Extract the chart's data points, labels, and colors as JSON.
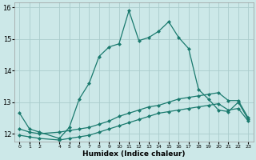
{
  "xlabel": "Humidex (Indice chaleur)",
  "background_color": "#cce8e8",
  "line_color": "#1a7a6e",
  "grid_color": "#aacccc",
  "xlim": [
    -0.5,
    23.5
  ],
  "ylim": [
    11.75,
    16.15
  ],
  "yticks": [
    12,
    13,
    14,
    15,
    16
  ],
  "xticks": [
    0,
    1,
    2,
    4,
    5,
    6,
    7,
    8,
    9,
    10,
    11,
    12,
    13,
    14,
    15,
    16,
    17,
    18,
    19,
    20,
    21,
    22,
    23
  ],
  "line1_x": [
    0,
    1,
    2,
    4,
    5,
    6,
    7,
    8,
    9,
    10,
    11,
    12,
    13,
    14,
    15,
    16,
    17,
    18,
    19,
    20,
    21,
    22,
    23
  ],
  "line1_y": [
    12.65,
    12.15,
    12.05,
    11.85,
    12.2,
    13.1,
    13.6,
    14.45,
    14.75,
    14.85,
    15.9,
    14.95,
    15.05,
    15.25,
    15.55,
    15.05,
    14.7,
    13.4,
    13.1,
    12.75,
    12.7,
    13.0,
    12.45
  ],
  "line2_x": [
    0,
    1,
    2,
    4,
    5,
    6,
    7,
    8,
    9,
    10,
    11,
    12,
    13,
    14,
    15,
    16,
    17,
    18,
    19,
    20,
    21,
    22,
    23
  ],
  "line2_y": [
    12.15,
    12.05,
    12.0,
    12.05,
    12.1,
    12.15,
    12.2,
    12.3,
    12.4,
    12.55,
    12.65,
    12.75,
    12.85,
    12.9,
    13.0,
    13.1,
    13.15,
    13.2,
    13.25,
    13.3,
    13.05,
    13.05,
    12.5
  ],
  "line3_x": [
    0,
    1,
    2,
    4,
    5,
    6,
    7,
    8,
    9,
    10,
    11,
    12,
    13,
    14,
    15,
    16,
    17,
    18,
    19,
    20,
    21,
    22,
    23
  ],
  "line3_y": [
    11.95,
    11.9,
    11.85,
    11.8,
    11.85,
    11.9,
    11.95,
    12.05,
    12.15,
    12.25,
    12.35,
    12.45,
    12.55,
    12.65,
    12.7,
    12.75,
    12.8,
    12.85,
    12.9,
    12.95,
    12.75,
    12.8,
    12.4
  ]
}
